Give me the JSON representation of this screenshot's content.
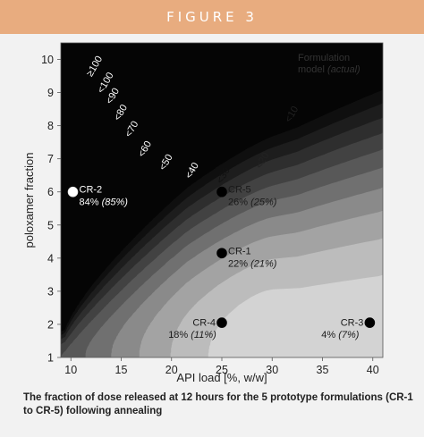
{
  "figure_label": "FIGURE 3",
  "caption": "The fraction of dose released at 12 hours for the 5 prototype formulations (CR-1 to CR-5) following annealing",
  "colors": {
    "banner": "#e8ac7f",
    "panel": "#f2f2f2"
  },
  "chart_data": {
    "type": "contour",
    "xlabel": "API load [%, w/w]",
    "ylabel": "poloxamer fraction",
    "xlim": [
      9,
      41
    ],
    "ylim": [
      1,
      10.5
    ],
    "xticks": [
      "10",
      "15",
      "20",
      "25",
      "30",
      "35",
      "40"
    ],
    "yticks": [
      "1",
      "2",
      "3",
      "4",
      "5",
      "6",
      "7",
      "8",
      "9",
      "10"
    ],
    "legend_title": "Formulation",
    "legend_subtitle_plain": "model ",
    "legend_subtitle_italic": "(actual)",
    "contour_levels": [
      {
        "label": "<10",
        "threshold": 10,
        "fill": "#d3d3d3",
        "label_x": 32.2,
        "label_y": 8.3
      },
      {
        "label": "<20",
        "threshold": 20,
        "fill": "#bcbcbc",
        "label_x": 29.3,
        "label_y": 6.9
      },
      {
        "label": "<30",
        "threshold": 30,
        "fill": "#a3a3a3",
        "label_x": 25.4,
        "label_y": 6.45
      },
      {
        "label": "<40",
        "threshold": 40,
        "fill": "#8a8a8a",
        "label_x": 22.3,
        "label_y": 6.6
      },
      {
        "label": "<50",
        "threshold": 50,
        "fill": "#707070",
        "label_x": 19.7,
        "label_y": 6.85
      },
      {
        "label": "<60",
        "threshold": 60,
        "fill": "#585858",
        "label_x": 17.6,
        "label_y": 7.25
      },
      {
        "label": "<70",
        "threshold": 70,
        "fill": "#424242",
        "label_x": 16.3,
        "label_y": 7.85
      },
      {
        "label": "<80",
        "threshold": 80,
        "fill": "#2e2e2e",
        "label_x": 15.2,
        "label_y": 8.35
      },
      {
        "label": "<90",
        "threshold": 90,
        "fill": "#1d1d1d",
        "label_x": 14.4,
        "label_y": 8.85
      },
      {
        "label": "<100",
        "threshold": 100,
        "fill": "#0f0f0f",
        "label_x": 13.7,
        "label_y": 9.25
      },
      {
        "label": "≥100",
        "threshold": 1000,
        "fill": "#050505",
        "label_x": 12.6,
        "label_y": 9.75
      }
    ],
    "points": [
      {
        "name": "CR-2",
        "x": 10.2,
        "y": 6.0,
        "model": "84%",
        "actual": "(85%)",
        "dot": "#ffffff",
        "label_side": "right",
        "label_color": "#ffffff"
      },
      {
        "name": "CR-5",
        "x": 25.0,
        "y": 6.0,
        "model": "26%",
        "actual": "(25%)",
        "dot": "#000000",
        "label_side": "right",
        "label_color": "#1a1a1a"
      },
      {
        "name": "CR-1",
        "x": 25.0,
        "y": 4.15,
        "model": "22%",
        "actual": "(21%)",
        "dot": "#000000",
        "label_side": "right",
        "label_color": "#1a1a1a"
      },
      {
        "name": "CR-4",
        "x": 25.0,
        "y": 2.05,
        "model": "18%",
        "actual": "(11%)",
        "dot": "#000000",
        "label_side": "left",
        "label_color": "#1a1a1a"
      },
      {
        "name": "CR-3",
        "x": 39.7,
        "y": 2.05,
        "model": "4%",
        "actual": "(7%)",
        "dot": "#000000",
        "label_side": "left",
        "label_color": "#1a1a1a"
      }
    ]
  }
}
